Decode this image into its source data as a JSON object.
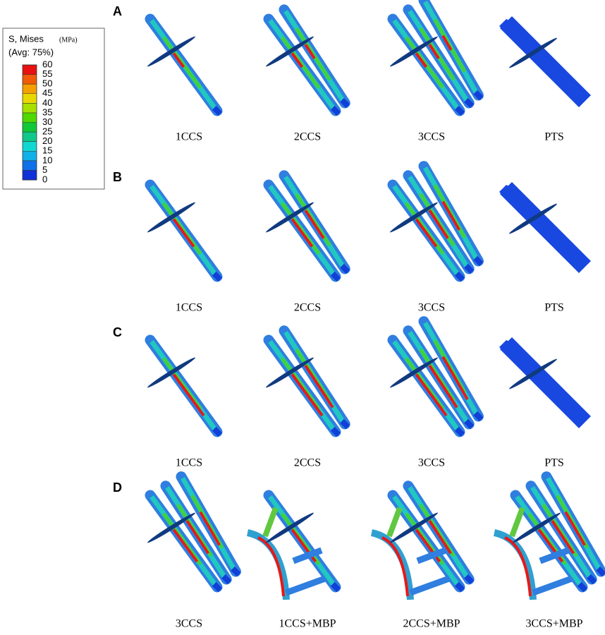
{
  "legend": {
    "title": "S, Mises",
    "unit": "(MPa)",
    "average": "(Avg: 75%)",
    "ticks": [
      60,
      55,
      50,
      45,
      40,
      35,
      30,
      25,
      20,
      15,
      10,
      5,
      0
    ],
    "colors": [
      "#e81010",
      "#f05a08",
      "#f5a000",
      "#e8d800",
      "#a8e000",
      "#50d800",
      "#10c838",
      "#10c88a",
      "#10d8d0",
      "#10b0e8",
      "#1070e8",
      "#1030d8"
    ]
  },
  "panels": [
    {
      "label": "A",
      "items": [
        "1CCS",
        "2CCS",
        "3CCS",
        "PTS"
      ]
    },
    {
      "label": "B",
      "items": [
        "1CCS",
        "2CCS",
        "3CCS",
        "PTS"
      ]
    },
    {
      "label": "C",
      "items": [
        "1CCS",
        "2CCS",
        "3CCS",
        "PTS"
      ]
    },
    {
      "label": "D",
      "items": [
        "3CCS",
        "1CCS+MBP",
        "2CCS+MBP",
        "3CCS+MBP"
      ]
    }
  ]
}
